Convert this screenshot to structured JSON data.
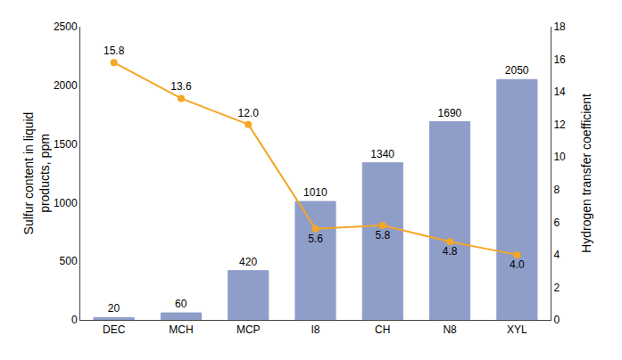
{
  "chart_data": {
    "type": "bar",
    "categories": [
      "DEC",
      "MCH",
      "MCP",
      "I8",
      "CH",
      "N8",
      "XYL"
    ],
    "series": [
      {
        "type": "bar",
        "color": "#8f9dc9",
        "values": [
          20,
          60,
          420,
          1010,
          1340,
          1690,
          2050
        ]
      },
      {
        "type": "line",
        "axis": "y2",
        "color": "#f5a623",
        "marker": "circle",
        "line_style": "solid",
        "values": [
          15.8,
          13.6,
          12.0,
          5.6,
          5.8,
          4.8,
          4.0
        ],
        "value_labels": [
          "15.8",
          "13.6",
          "12.0",
          "5.6",
          "5.8",
          "4.8",
          "4.0"
        ]
      }
    ],
    "ylabel": "Sulfur content in liquid\nproducts, ppm",
    "y2label": "Hydrogen transfer coefficient",
    "ylim": [
      0,
      2500
    ],
    "yticks": [
      0,
      500,
      1000,
      1500,
      2000,
      2500
    ],
    "y2lim": [
      0,
      18
    ],
    "y2ticks": [
      0,
      2,
      4,
      6,
      8,
      10,
      12,
      14,
      16,
      18
    ],
    "data_labels": true,
    "grid": false
  }
}
